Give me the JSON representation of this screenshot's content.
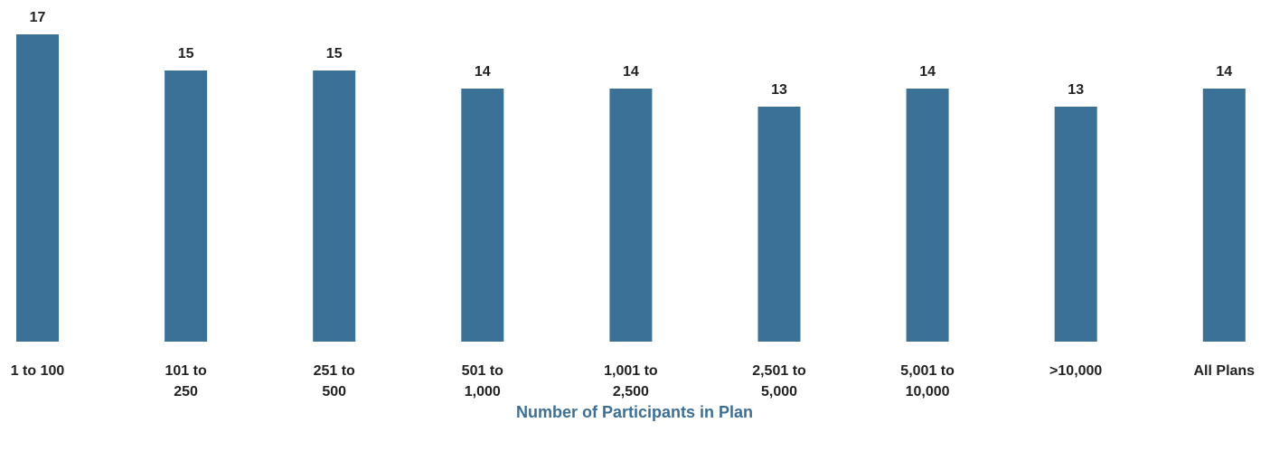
{
  "chart_data": {
    "type": "bar",
    "categories": [
      [
        "1 to 100"
      ],
      [
        "101 to",
        "250"
      ],
      [
        "251 to",
        "500"
      ],
      [
        "501 to",
        "1,000"
      ],
      [
        "1,001 to",
        "2,500"
      ],
      [
        "2,501 to",
        "5,000"
      ],
      [
        "5,001 to",
        "10,000"
      ],
      [
        ">10,000"
      ],
      [
        "All Plans"
      ]
    ],
    "values": [
      17,
      15,
      15,
      14,
      14,
      13,
      14,
      13,
      14
    ],
    "value_labels": [
      "17",
      "15",
      "15",
      "14",
      "14",
      "13",
      "14",
      "13",
      "14"
    ],
    "title": "",
    "xlabel": "Number of Participants in Plan",
    "ylabel": "",
    "ylim": [
      0,
      17
    ],
    "grid": false,
    "legend": "none",
    "colors": {
      "bar": "#3b7196",
      "xlabel": "#3b6f96",
      "text": "#222222"
    }
  }
}
